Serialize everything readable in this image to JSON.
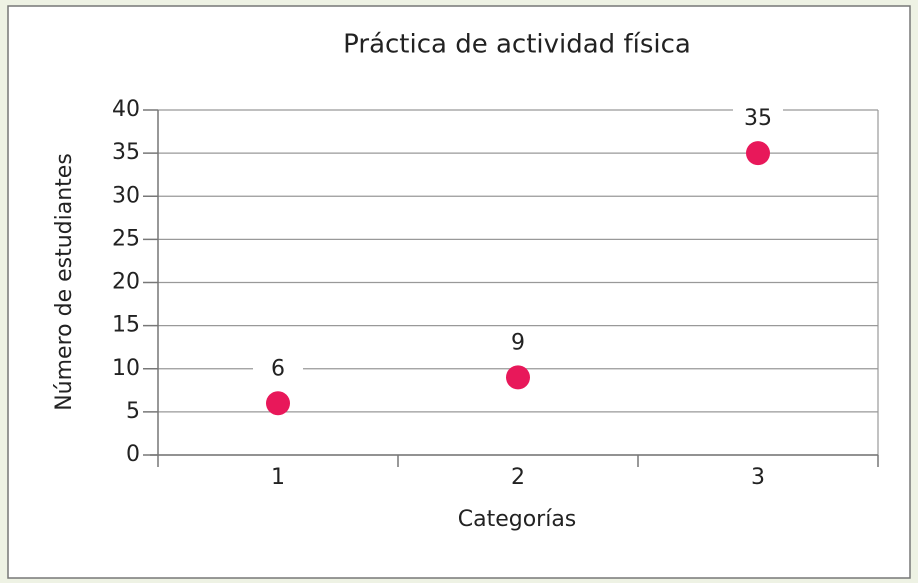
{
  "chart_data": {
    "type": "dot",
    "title": "Práctica de actividad física",
    "x_label": "Categorías",
    "y_label": "Número de estudiantes",
    "categories": [
      "1",
      "2",
      "3"
    ],
    "values": [
      6,
      9,
      35
    ],
    "color": "#e8185a",
    "ylim": [
      0,
      40
    ],
    "yticks": [
      0,
      5,
      10,
      15,
      20,
      25,
      30,
      35,
      40
    ],
    "grid": true
  }
}
